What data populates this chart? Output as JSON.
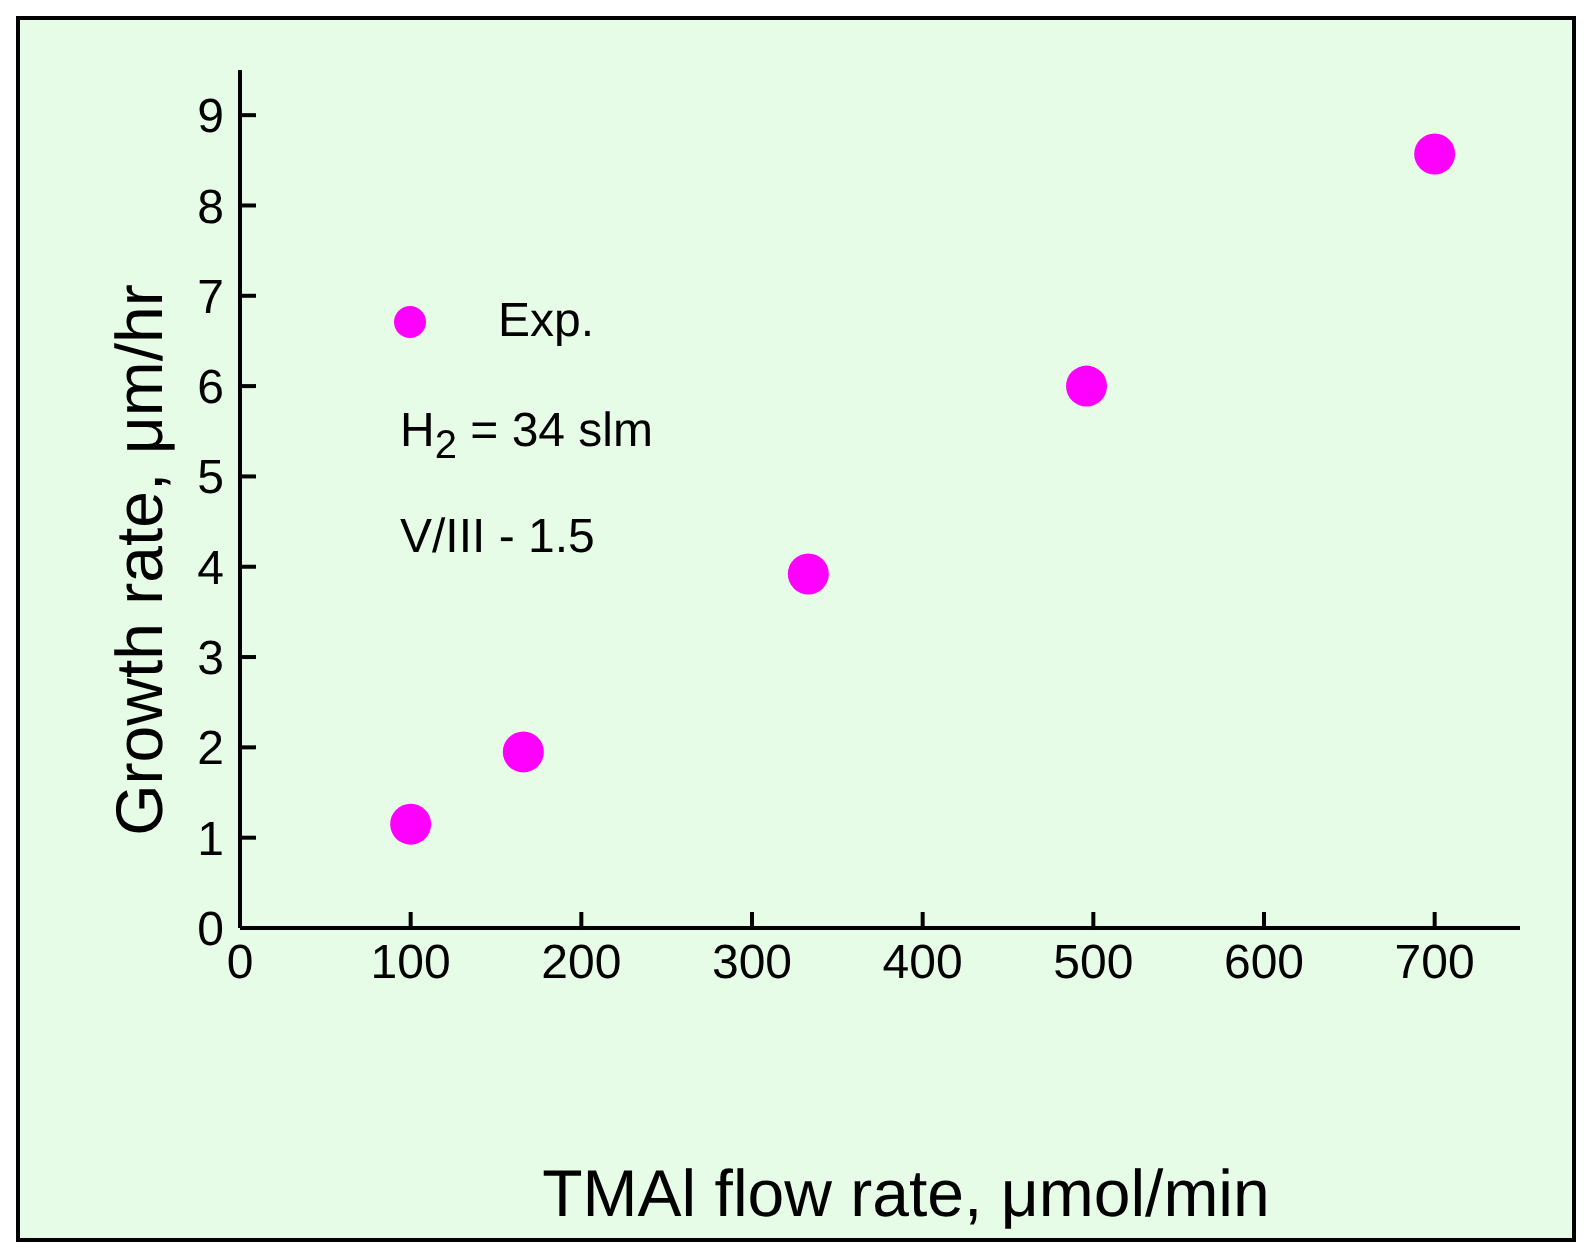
{
  "chart_data": {
    "type": "scatter",
    "xlabel": "TMAl flow rate, μmol/min",
    "ylabel": "Growth rate, μm/hr",
    "x": [
      100,
      166,
      333,
      496,
      700
    ],
    "series": [
      {
        "name": "Exp.",
        "color": "#ff00ff",
        "values": [
          1.15,
          1.95,
          3.92,
          6.0,
          8.57
        ]
      }
    ],
    "xlim": [
      0,
      750
    ],
    "xticks": [
      0,
      100,
      200,
      300,
      400,
      500,
      600,
      700
    ],
    "ylim": [
      0,
      9.5
    ],
    "yticks": [
      0,
      1,
      2,
      3,
      4,
      5,
      6,
      7,
      8,
      9
    ],
    "marker": "circle",
    "legend": "top left",
    "grid": false,
    "annotations": [
      "H$_{2}$ = 34 slm",
      "V/III - 1.5"
    ]
  }
}
